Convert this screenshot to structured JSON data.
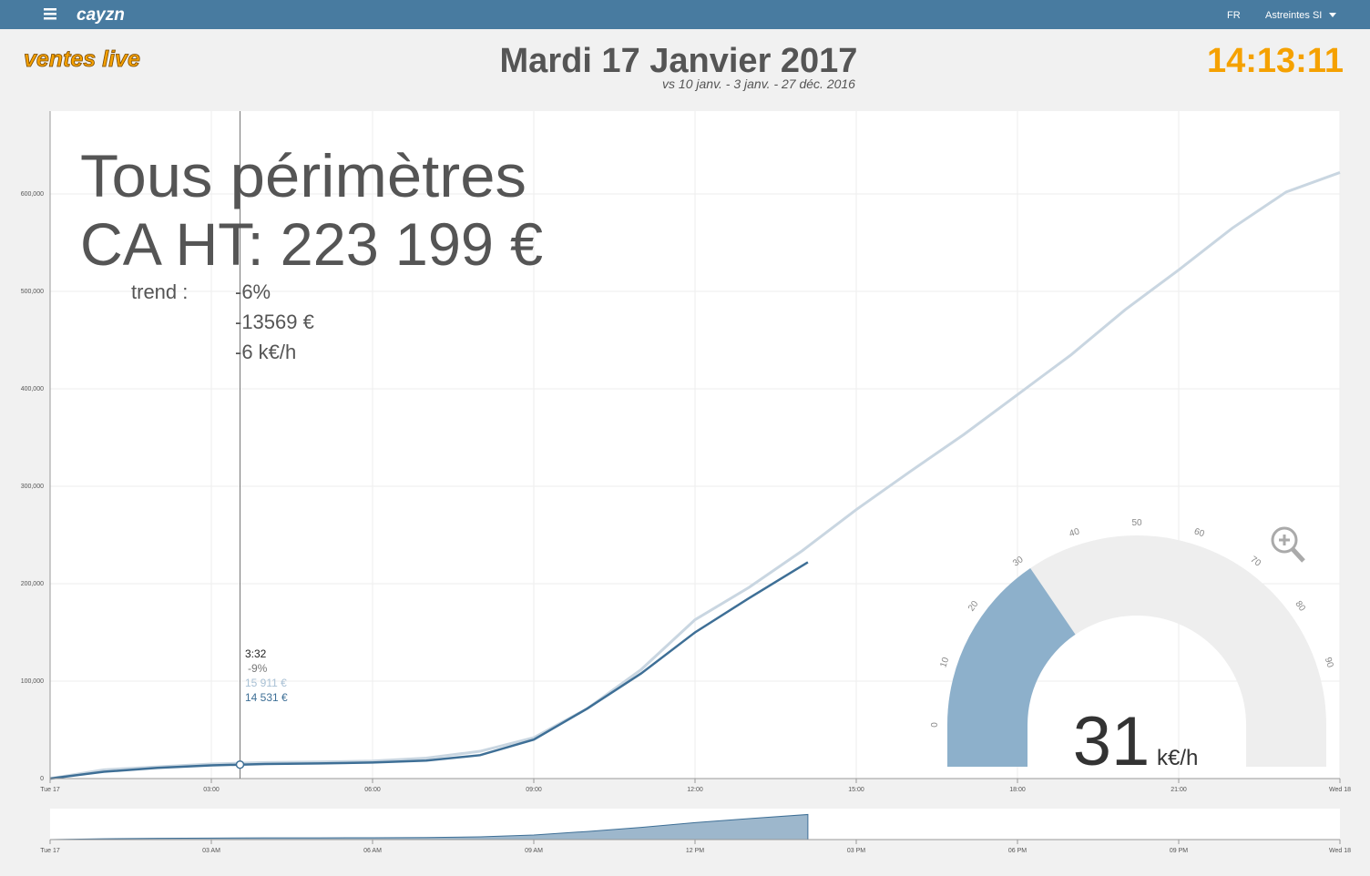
{
  "navbar": {
    "brand": "cayzn",
    "language": "FR",
    "user": "Astreintes SI"
  },
  "header": {
    "logo": "ventes live",
    "date": "Mardi 17 Janvier 2017",
    "comparison": "vs 10 janv. - 3 janv. - 27 déc. 2016",
    "clock": "14:13:11"
  },
  "overlay": {
    "title": "Tous périmètres",
    "revenue": "CA HT: 223 199 €",
    "trend_label": "trend :",
    "trend": [
      "-6%",
      "-13569 €",
      "-6 k€/h"
    ]
  },
  "chart_data": {
    "type": "line",
    "xlim": [
      0,
      24
    ],
    "xticks": [
      {
        "value": 0,
        "label": "Tue 17"
      },
      {
        "value": 3,
        "label": "03:00"
      },
      {
        "value": 6,
        "label": "06:00"
      },
      {
        "value": 9,
        "label": "09:00"
      },
      {
        "value": 12,
        "label": "12:00"
      },
      {
        "value": 15,
        "label": "15:00"
      },
      {
        "value": 18,
        "label": "18:00"
      },
      {
        "value": 21,
        "label": "21:00"
      },
      {
        "value": 24,
        "label": "Wed 18"
      }
    ],
    "ylim": [
      0,
      685000
    ],
    "yticks": [
      0,
      {
        "value": 100000,
        "label": "100,000"
      },
      {
        "value": 200000,
        "label": "200,000"
      },
      {
        "value": 300000,
        "label": "300,000"
      },
      {
        "value": 400000,
        "label": "400,000"
      },
      {
        "value": 500000,
        "label": "500,000"
      },
      {
        "value": 600000,
        "label": "600,000"
      }
    ],
    "grid": true,
    "series": [
      {
        "color": "#c9d6e1",
        "x": [
          0,
          1,
          2,
          3,
          4,
          5,
          6,
          7,
          8,
          9,
          10,
          11,
          12,
          13,
          14,
          15,
          16,
          17,
          18,
          19,
          20,
          21,
          22,
          23,
          24
        ],
        "values": [
          0,
          9000,
          12000,
          15000,
          16500,
          17000,
          18000,
          21000,
          28000,
          42000,
          72000,
          112000,
          163000,
          196000,
          234000,
          276000,
          315000,
          353000,
          394000,
          435000,
          481000,
          522000,
          565000,
          602000,
          622000
        ]
      },
      {
        "color": "#3e6f96",
        "x": [
          0,
          1,
          2,
          3,
          4,
          5,
          6,
          7,
          8,
          9,
          10,
          11,
          12,
          13,
          14.1
        ],
        "values": [
          0,
          7000,
          11000,
          13500,
          15000,
          15500,
          16500,
          18500,
          24000,
          40000,
          72000,
          108000,
          150000,
          185000,
          222000
        ]
      }
    ],
    "tooltip": {
      "time": "3:32",
      "change": "-9%",
      "previous": "15 911 €",
      "current": "14 531 €"
    },
    "navigator": {
      "xticks": [
        {
          "value": 0,
          "label": "Tue 17"
        },
        {
          "value": 3,
          "label": "03 AM"
        },
        {
          "value": 6,
          "label": "06 AM"
        },
        {
          "value": 9,
          "label": "09 AM"
        },
        {
          "value": 12,
          "label": "12 PM"
        },
        {
          "value": 15,
          "label": "03 PM"
        },
        {
          "value": 18,
          "label": "06 PM"
        },
        {
          "value": 21,
          "label": "09 PM"
        },
        {
          "value": 24,
          "label": "Wed 18"
        }
      ]
    }
  },
  "gauge": {
    "value": 31,
    "unit": "k€/h",
    "range": [
      0,
      100
    ],
    "ticks": [
      0,
      10,
      20,
      30,
      40,
      50,
      60,
      70,
      80,
      90
    ],
    "color": "#8db0cb",
    "track": "#eeeeee"
  }
}
